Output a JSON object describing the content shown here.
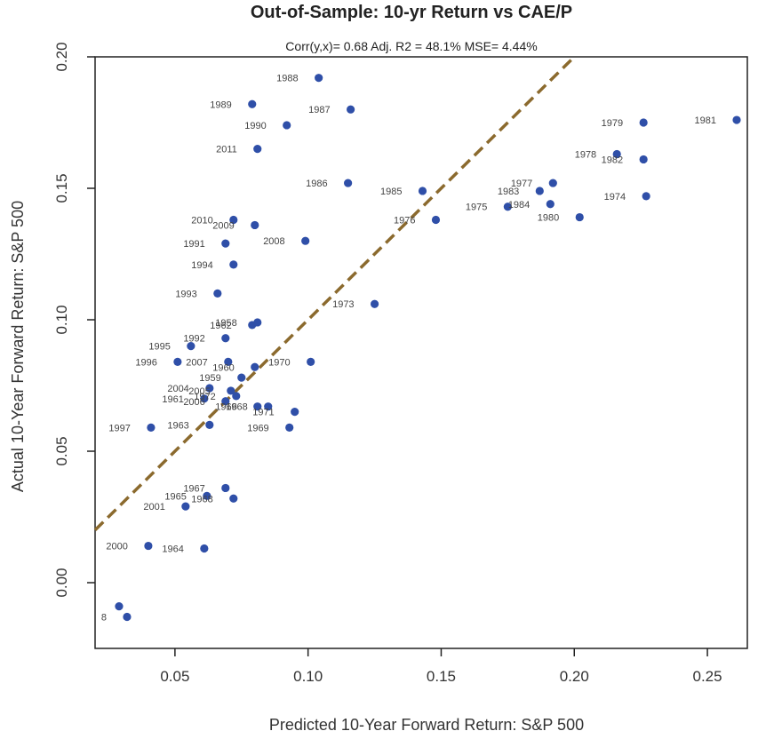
{
  "chart_data": {
    "type": "scatter",
    "title": "Out-of-Sample: 10-yr Return vs CAE/P",
    "subtitle": "Corr(y,x)= 0.68  Adj. R2 = 48.1%   MSE= 4.44%",
    "xlabel": "Predicted 10-Year Forward Return: S&P 500",
    "ylabel": "Actual 10-Year Forward Return: S&P 500",
    "xlim": [
      0.02,
      0.265
    ],
    "ylim": [
      -0.025,
      0.2
    ],
    "xticks": [
      "0.05",
      "0.10",
      "0.15",
      "0.20",
      "0.25"
    ],
    "xtick_values": [
      0.05,
      0.1,
      0.15,
      0.2,
      0.25
    ],
    "yticks": [
      "0.00",
      "0.05",
      "0.10",
      "0.15",
      "0.20"
    ],
    "ytick_values": [
      0.0,
      0.05,
      0.1,
      0.15,
      0.2
    ],
    "grid": false,
    "fit_line": {
      "style": "dashed",
      "color": "#8B6A2E",
      "from": [
        0.02,
        0.02
      ],
      "to": [
        0.2,
        0.2
      ]
    },
    "point_color": "#2F4FA8",
    "points": [
      {
        "x": 0.104,
        "y": 0.192,
        "label": "1988"
      },
      {
        "x": 0.079,
        "y": 0.182,
        "label": "1989"
      },
      {
        "x": 0.116,
        "y": 0.18,
        "label": "1987"
      },
      {
        "x": 0.092,
        "y": 0.174,
        "label": "1990"
      },
      {
        "x": 0.081,
        "y": 0.165,
        "label": "2011"
      },
      {
        "x": 0.115,
        "y": 0.152,
        "label": "1986"
      },
      {
        "x": 0.143,
        "y": 0.149,
        "label": "1985"
      },
      {
        "x": 0.148,
        "y": 0.138,
        "label": "1976"
      },
      {
        "x": 0.175,
        "y": 0.143,
        "label": "1975"
      },
      {
        "x": 0.187,
        "y": 0.149,
        "label": "1983"
      },
      {
        "x": 0.192,
        "y": 0.152,
        "label": "1977"
      },
      {
        "x": 0.191,
        "y": 0.144,
        "label": "1984"
      },
      {
        "x": 0.202,
        "y": 0.139,
        "label": "1980"
      },
      {
        "x": 0.226,
        "y": 0.175,
        "label": "1979"
      },
      {
        "x": 0.261,
        "y": 0.176,
        "label": "1981"
      },
      {
        "x": 0.216,
        "y": 0.163,
        "label": "1978"
      },
      {
        "x": 0.226,
        "y": 0.161,
        "label": "1982"
      },
      {
        "x": 0.227,
        "y": 0.147,
        "label": "1974"
      },
      {
        "x": 0.072,
        "y": 0.138,
        "label": "2010"
      },
      {
        "x": 0.08,
        "y": 0.136,
        "label": "2009"
      },
      {
        "x": 0.069,
        "y": 0.129,
        "label": "1991"
      },
      {
        "x": 0.099,
        "y": 0.13,
        "label": "2008"
      },
      {
        "x": 0.072,
        "y": 0.121,
        "label": "1994"
      },
      {
        "x": 0.066,
        "y": 0.11,
        "label": "1993"
      },
      {
        "x": 0.125,
        "y": 0.106,
        "label": "1973"
      },
      {
        "x": 0.079,
        "y": 0.098,
        "label": "1962"
      },
      {
        "x": 0.081,
        "y": 0.099,
        "label": "1958"
      },
      {
        "x": 0.069,
        "y": 0.093,
        "label": "1992"
      },
      {
        "x": 0.056,
        "y": 0.09,
        "label": "1995"
      },
      {
        "x": 0.051,
        "y": 0.084,
        "label": "1996"
      },
      {
        "x": 0.07,
        "y": 0.084,
        "label": "2007"
      },
      {
        "x": 0.101,
        "y": 0.084,
        "label": "1970"
      },
      {
        "x": 0.08,
        "y": 0.082,
        "label": "1960"
      },
      {
        "x": 0.075,
        "y": 0.078,
        "label": "1959"
      },
      {
        "x": 0.063,
        "y": 0.074,
        "label": "2004"
      },
      {
        "x": 0.071,
        "y": 0.073,
        "label": "2005"
      },
      {
        "x": 0.061,
        "y": 0.07,
        "label": "1961"
      },
      {
        "x": 0.069,
        "y": 0.069,
        "label": "2006"
      },
      {
        "x": 0.073,
        "y": 0.071,
        "label": "1972"
      },
      {
        "x": 0.081,
        "y": 0.067,
        "label": "1966"
      },
      {
        "x": 0.085,
        "y": 0.067,
        "label": "1968"
      },
      {
        "x": 0.095,
        "y": 0.065,
        "label": "1971"
      },
      {
        "x": 0.063,
        "y": 0.06,
        "label": "1963"
      },
      {
        "x": 0.041,
        "y": 0.059,
        "label": "1997"
      },
      {
        "x": 0.093,
        "y": 0.059,
        "label": "1969"
      },
      {
        "x": 0.069,
        "y": 0.036,
        "label": "1967"
      },
      {
        "x": 0.062,
        "y": 0.033,
        "label": "1965"
      },
      {
        "x": 0.072,
        "y": 0.032,
        "label": "1968"
      },
      {
        "x": 0.054,
        "y": 0.029,
        "label": "2001"
      },
      {
        "x": 0.04,
        "y": 0.014,
        "label": "2000"
      },
      {
        "x": 0.061,
        "y": 0.013,
        "label": "1964"
      },
      {
        "x": 0.029,
        "y": -0.009,
        "label": ""
      },
      {
        "x": 0.032,
        "y": -0.013,
        "label": "8"
      }
    ]
  }
}
